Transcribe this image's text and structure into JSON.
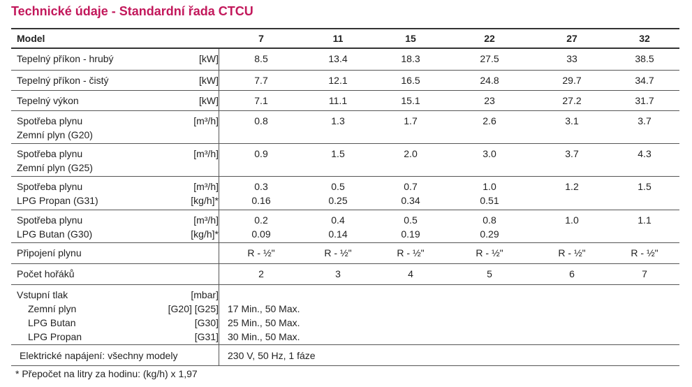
{
  "title": "Technické údaje - Standardní řada CTCU",
  "header": {
    "label": "Model",
    "models": [
      "7",
      "11",
      "15",
      "22",
      "27",
      "32"
    ]
  },
  "rows": [
    {
      "lines": [
        "Tepelný příkon - hrubý"
      ],
      "units": [
        "[kW]"
      ],
      "values": [
        [
          "8.5"
        ],
        [
          "13.4"
        ],
        [
          "18.3"
        ],
        [
          "27.5"
        ],
        [
          "33"
        ],
        [
          "38.5"
        ]
      ]
    },
    {
      "lines": [
        "Tepelný příkon - čistý"
      ],
      "units": [
        "[kW]"
      ],
      "values": [
        [
          "7.7"
        ],
        [
          "12.1"
        ],
        [
          "16.5"
        ],
        [
          "24.8"
        ],
        [
          "29.7"
        ],
        [
          "34.7"
        ]
      ]
    },
    {
      "lines": [
        "Tepelný výkon"
      ],
      "units": [
        "[kW]"
      ],
      "values": [
        [
          "7.1"
        ],
        [
          "11.1"
        ],
        [
          "15.1"
        ],
        [
          "23"
        ],
        [
          "27.2"
        ],
        [
          "31.7"
        ]
      ]
    },
    {
      "lines": [
        "Spotřeba plynu",
        "Zemní plyn (G20)"
      ],
      "units": [
        "[m³/h]"
      ],
      "values": [
        [
          "0.8"
        ],
        [
          "1.3"
        ],
        [
          "1.7"
        ],
        [
          "2.6"
        ],
        [
          "3.1"
        ],
        [
          "3.7"
        ]
      ]
    },
    {
      "lines": [
        "Spotřeba plynu",
        "Zemní plyn (G25)"
      ],
      "units": [
        "[m³/h]"
      ],
      "values": [
        [
          "0.9"
        ],
        [
          "1.5"
        ],
        [
          "2.0"
        ],
        [
          "3.0"
        ],
        [
          "3.7"
        ],
        [
          "4.3"
        ]
      ]
    },
    {
      "lines": [
        "Spotřeba plynu",
        "LPG Propan (G31)"
      ],
      "units": [
        "[m³/h]",
        "[kg/h]*"
      ],
      "values": [
        [
          "0.3",
          "0.16"
        ],
        [
          "0.5",
          "0.25"
        ],
        [
          "0.7",
          "0.34"
        ],
        [
          "1.0",
          "0.51"
        ],
        [
          "1.2"
        ],
        [
          "1.5"
        ]
      ]
    },
    {
      "lines": [
        "Spotřeba plynu",
        "LPG Butan (G30)"
      ],
      "units": [
        "[m³/h]",
        "[kg/h]*"
      ],
      "values": [
        [
          "0.2",
          "0.09"
        ],
        [
          "0.4",
          "0.14"
        ],
        [
          "0.5",
          "0.19"
        ],
        [
          "0.8",
          "0.29"
        ],
        [
          "1.0"
        ],
        [
          "1.1"
        ]
      ]
    },
    {
      "lines": [
        "Připojení plynu"
      ],
      "units": [],
      "values": [
        [
          "R - ½\""
        ],
        [
          "R - ½\""
        ],
        [
          "R - ½\""
        ],
        [
          "R - ½\""
        ],
        [
          "R - ½\""
        ],
        [
          "R - ½\""
        ]
      ]
    },
    {
      "lines": [
        "Počet hořáků"
      ],
      "units": [],
      "values": [
        [
          "2"
        ],
        [
          "3"
        ],
        [
          "4"
        ],
        [
          "5"
        ],
        [
          "6"
        ],
        [
          "7"
        ]
      ]
    }
  ],
  "pressure": {
    "title": "Vstupní tlak",
    "title_unit": "[mbar]",
    "items": [
      {
        "label": "Zemní plyn",
        "unit": "[G20] [G25]",
        "value": "17 Min., 50 Max."
      },
      {
        "label": "LPG Butan",
        "unit": "[G30]",
        "value": "25 Min., 50 Max."
      },
      {
        "label": "LPG Propan",
        "unit": "[G31]",
        "value": "30 Min., 50 Max."
      }
    ]
  },
  "electric": {
    "label": "Elektrické napájení: všechny modely",
    "value": "230 V, 50 Hz, 1 fáze"
  },
  "footnote": "* Přepočet na litry za hodinu: (kg/h) x 1,97"
}
